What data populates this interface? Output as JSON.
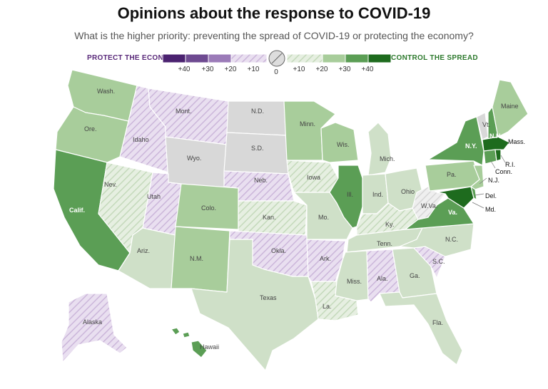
{
  "title": "Opinions about the response to COVID-19",
  "subtitle": "What is the higher priority: preventing the spread of COVID-19 or protecting the economy?",
  "legend": {
    "left_label": "PROTECT THE ECONOMY",
    "right_label": "CONTROL THE SPREAD",
    "ticks": [
      "+40",
      "+30",
      "+20",
      "+10",
      "0",
      "+10",
      "+20",
      "+30",
      "+40"
    ],
    "colors": {
      "econ40": "#4b2270",
      "econ30": "#6e4a91",
      "econ20": "#9b7bb8",
      "econ10": "#dccbe6",
      "neutral": "#d8d8d8",
      "spread10": "#cfe0c8",
      "spread20": "#a8cd9b",
      "spread30": "#5b9e55",
      "spread40": "#1e6b1e"
    }
  },
  "states": {
    "wa": "Wash.",
    "or": "Ore.",
    "ca": "Calif.",
    "id": "Idaho",
    "nv": "Nev.",
    "mt": "Mont.",
    "wy": "Wyo.",
    "ut": "Utah",
    "az": "Ariz.",
    "co": "Colo.",
    "nm": "N.M.",
    "nd": "N.D.",
    "sd": "S.D.",
    "ne": "Neb.",
    "ks": "Kan.",
    "ok": "Okla.",
    "tx": "Texas",
    "mn": "Minn.",
    "ia": "Iowa",
    "mo": "Mo.",
    "ar": "Ark.",
    "la": "La.",
    "wi": "Wis.",
    "il": "Ill.",
    "mi": "Mich.",
    "in": "Ind.",
    "oh": "Ohio",
    "ky": "Ky.",
    "tn": "Tenn.",
    "ms": "Miss.",
    "al": "Ala.",
    "ga": "Ga.",
    "fl": "Fla.",
    "sc": "S.C.",
    "nc": "N.C.",
    "va": "Va.",
    "wv": "W.Va.",
    "pa": "Pa.",
    "ny": "N.Y.",
    "vt": "Vt.",
    "nh": "N.H.",
    "me": "Maine",
    "ma": "Mass.",
    "ri": "R.I.",
    "ct": "Conn.",
    "nj": "N.J.",
    "de": "Del.",
    "md": "Md.",
    "ak": "Alaska",
    "hi": "Hawaii"
  }
}
